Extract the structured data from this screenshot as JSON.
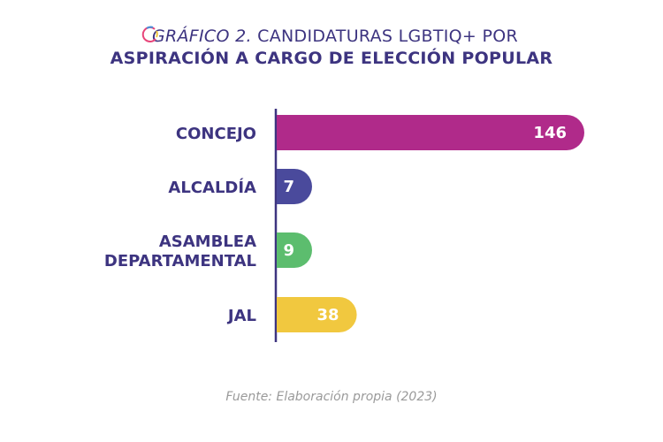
{
  "chart_data": {
    "type": "bar",
    "orientation": "horizontal",
    "title_prefix": "GRÁFICO 2.",
    "title_rest": "CANDIDATURAS LGBTIQ+ POR",
    "subtitle": "ASPIRACIÓN A CARGO DE ELECCIÓN POPULAR",
    "categories": [
      [
        "CONCEJO"
      ],
      [
        "ALCALDÍA"
      ],
      [
        "ASAMBLEA",
        "DEPARTAMENTAL"
      ],
      [
        "JAL"
      ]
    ],
    "values": [
      146,
      7,
      9,
      38
    ],
    "colors": [
      "#b02a8a",
      "#4a4a9c",
      "#5cbd6e",
      "#f1c83f"
    ],
    "data_label_color": "#ffffff",
    "category_label_color": "#3d3480",
    "xlim": [
      0,
      146
    ],
    "grid": false,
    "legend": "none"
  },
  "footer": {
    "source": "Fuente: Elaboración propia (2023)"
  }
}
